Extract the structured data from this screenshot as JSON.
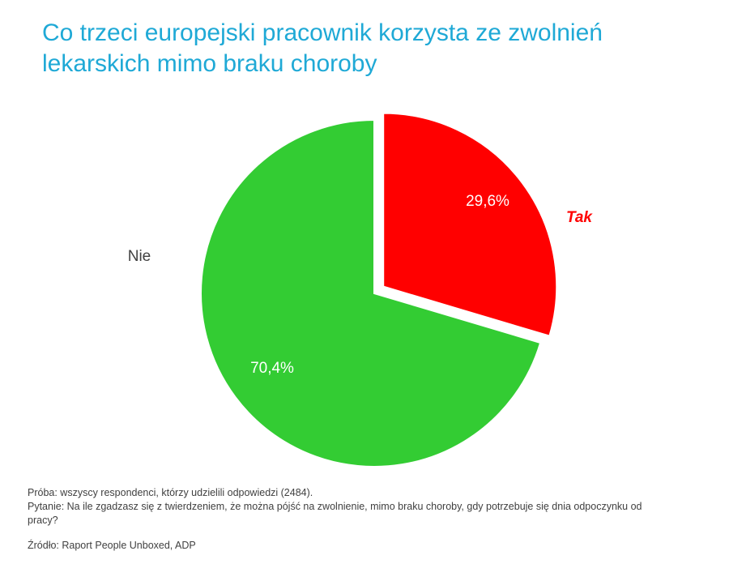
{
  "title_lines": [
    "Co trzeci europejski pracownik korzysta ze zwolnień",
    "lekarskich mimo braku choroby"
  ],
  "chart_data": {
    "type": "pie",
    "slices": [
      {
        "label": "Tak",
        "value": 29.6,
        "value_label": "29,6%",
        "color": "#ff0000",
        "exploded": true
      },
      {
        "label": "Nie",
        "value": 70.4,
        "value_label": "70,4%",
        "color": "#33cc33",
        "exploded": false
      }
    ]
  },
  "notes": {
    "sample": "Próba: wszyscy respondenci, którzy udzielili odpowiedzi (2484).",
    "question": "Pytanie: Na ile zgadzasz się z twierdzeniem, że można pójść na zwolnienie, mimo braku choroby, gdy potrzebuje się dnia odpoczynku od pracy?",
    "source": "Źródło: Raport People Unboxed, ADP"
  }
}
